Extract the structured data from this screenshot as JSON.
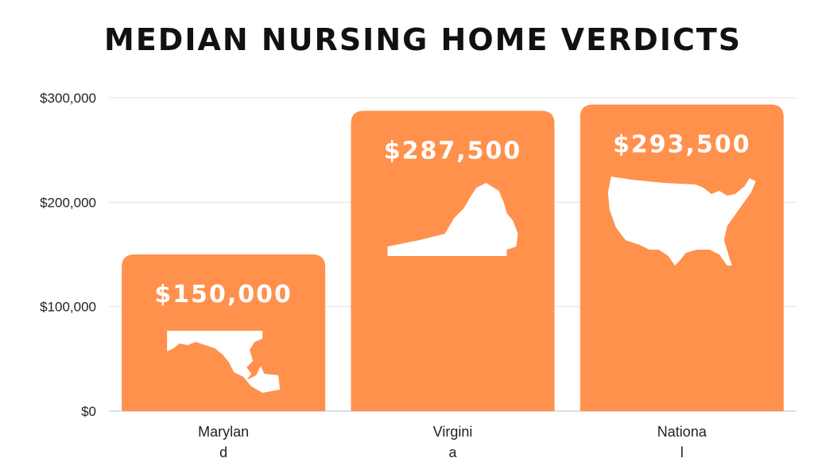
{
  "chart_data": {
    "type": "bar",
    "title": "MEDIAN NURSING HOME VERDICTS",
    "categories": [
      "Marylan d",
      "Virgini a",
      "Nationa l"
    ],
    "category_lines": [
      [
        "Marylan",
        "d"
      ],
      [
        "Virgini",
        "a"
      ],
      [
        "Nationa",
        "l"
      ]
    ],
    "values": [
      150000,
      287500,
      293500
    ],
    "value_labels": [
      "$150,000",
      "$287,500",
      "$293,500"
    ],
    "yticks": [
      0,
      100000,
      200000,
      300000
    ],
    "ytick_labels": [
      "$0",
      "$100,000",
      "$200,000",
      "$300,000"
    ],
    "ylim": [
      0,
      300000
    ],
    "grid": true,
    "bar_color": "#FF914D",
    "icons": [
      "maryland-map-icon",
      "virginia-map-icon",
      "usa-map-icon"
    ]
  }
}
